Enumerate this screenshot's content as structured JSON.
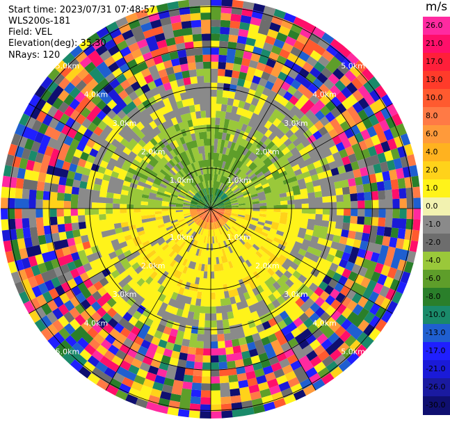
{
  "header": {
    "start_time": "Start time: 2023/07/31 07:48:57",
    "instrument": "WLS200s-181",
    "field": "Field: VEL",
    "elevation": "Elevation(deg): 35.30",
    "nrays": "NRays: 120"
  },
  "colorbar": {
    "unit": "m/s",
    "ticks": [
      "26.0",
      "21.0",
      "17.0",
      "13.0",
      "10.0",
      "8.0",
      "6.0",
      "4.0",
      "2.0",
      "1.0",
      "0.0",
      "-1.0",
      "-2.0",
      "-4.0",
      "-6.0",
      "-8.0",
      "-10.0",
      "-13.0",
      "-17.0",
      "-21.0",
      "-26.0",
      "-30.0"
    ],
    "colors": [
      "#ff2aa0",
      "#ff0f6a",
      "#ff1f3a",
      "#ff3b2a",
      "#ff5a2f",
      "#ff7a45",
      "#ff9a3a",
      "#ffb21f",
      "#ffd21a",
      "#fff31a",
      "#f2f2b0",
      "#8a8a8a",
      "#6d6d6d",
      "#9ac83a",
      "#5e9e2a",
      "#2a7f2a",
      "#1a8a6a",
      "#1f5fd0",
      "#1f1fff",
      "#1a1ad8",
      "#1a1aa0",
      "#0f0f70"
    ]
  },
  "chart_data": {
    "type": "ppi",
    "field": "VEL",
    "units": "m/s",
    "range_rings_km": [
      1.0,
      2.0,
      3.0,
      4.0,
      5.0
    ],
    "range_labels": [
      "1.0km",
      "2.0km",
      "3.0km",
      "4.0km",
      "5.0km"
    ],
    "n_rays": 120,
    "grid": true
  }
}
